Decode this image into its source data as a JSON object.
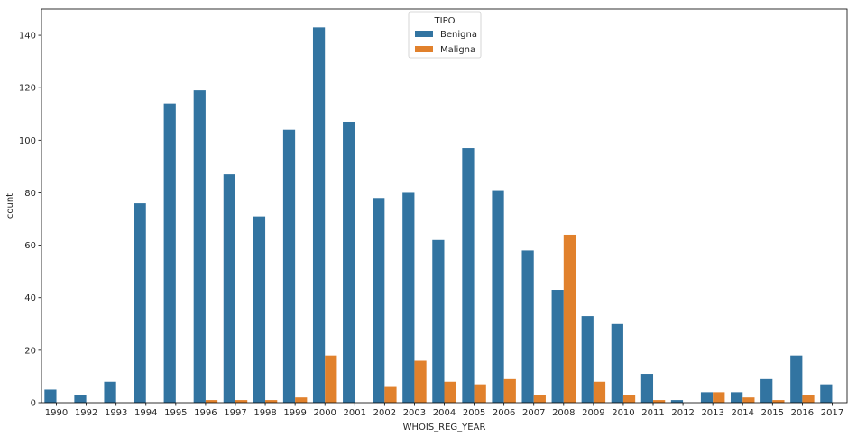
{
  "chart_data": {
    "type": "bar",
    "title": "",
    "xlabel": "WHOIS_REG_YEAR",
    "ylabel": "count",
    "ylim": [
      0,
      150
    ],
    "yticks": [
      0,
      20,
      40,
      60,
      80,
      100,
      120,
      140
    ],
    "grid": false,
    "legend": {
      "title": "TIPO",
      "placement": "top-center"
    },
    "categories": [
      "1990",
      "1992",
      "1993",
      "1994",
      "1995",
      "1996",
      "1997",
      "1998",
      "1999",
      "2000",
      "2001",
      "2002",
      "2003",
      "2004",
      "2005",
      "2006",
      "2007",
      "2008",
      "2009",
      "2010",
      "2011",
      "2012",
      "2013",
      "2014",
      "2015",
      "2016",
      "2017"
    ],
    "series": [
      {
        "name": "Benigna",
        "color": "#3274a1",
        "values": [
          5,
          3,
          8,
          76,
          114,
          119,
          87,
          71,
          104,
          143,
          107,
          78,
          80,
          62,
          97,
          81,
          58,
          43,
          33,
          30,
          11,
          1,
          4,
          4,
          9,
          18,
          7
        ]
      },
      {
        "name": "Maligna",
        "color": "#e1812c",
        "values": [
          0,
          0,
          0,
          0,
          0,
          1,
          1,
          1,
          2,
          18,
          0,
          6,
          16,
          8,
          7,
          9,
          3,
          64,
          8,
          3,
          1,
          0,
          4,
          2,
          1,
          3,
          0
        ]
      }
    ]
  }
}
